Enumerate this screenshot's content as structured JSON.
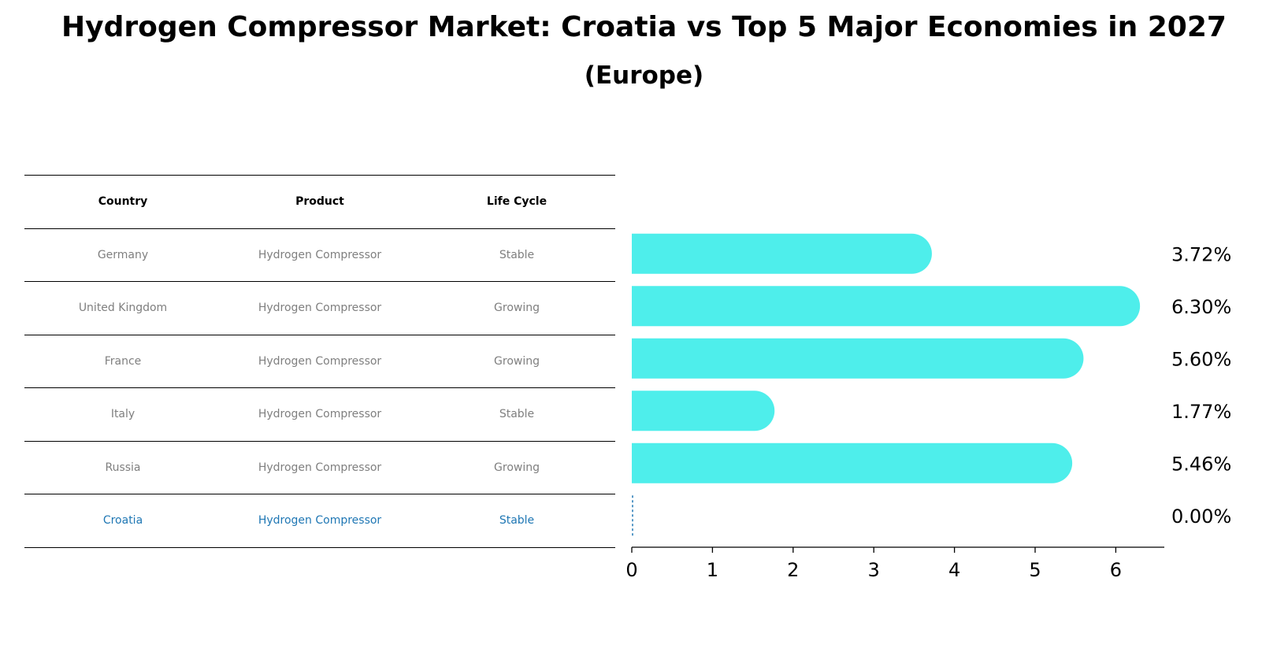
{
  "title": "Hydrogen Compressor Market: Croatia vs Top 5 Major Economies in 2027",
  "subtitle": "(Europe)",
  "table": {
    "headers": [
      "Country",
      "Product",
      "Life Cycle"
    ],
    "rows": [
      [
        "Germany",
        "Hydrogen Compressor",
        "Stable"
      ],
      [
        "United Kingdom",
        "Hydrogen Compressor",
        "Growing"
      ],
      [
        "France",
        "Hydrogen Compressor",
        "Growing"
      ],
      [
        "Italy",
        "Hydrogen Compressor",
        "Stable"
      ],
      [
        "Russia",
        "Hydrogen Compressor",
        "Growing"
      ],
      [
        "Croatia",
        "Hydrogen Compressor",
        "Stable"
      ]
    ],
    "highlight_color": "#1f77b4",
    "text_color": "#7f7f7f"
  },
  "chart_data": {
    "type": "bar",
    "orientation": "horizontal",
    "categories": [
      "Germany",
      "United Kingdom",
      "France",
      "Italy",
      "Russia",
      "Croatia"
    ],
    "values": [
      3.72,
      6.3,
      5.6,
      1.77,
      5.46,
      0.0
    ],
    "value_labels": [
      "3.72%",
      "6.30%",
      "5.60%",
      "1.77%",
      "5.46%",
      "0.00%"
    ],
    "xlim": [
      0,
      6.6
    ],
    "xticks": [
      "0",
      "1",
      "2",
      "3",
      "4",
      "5",
      "6"
    ],
    "bar_color": "#4eeeeb",
    "highlight_color": "#1f77b4",
    "grid": false
  }
}
